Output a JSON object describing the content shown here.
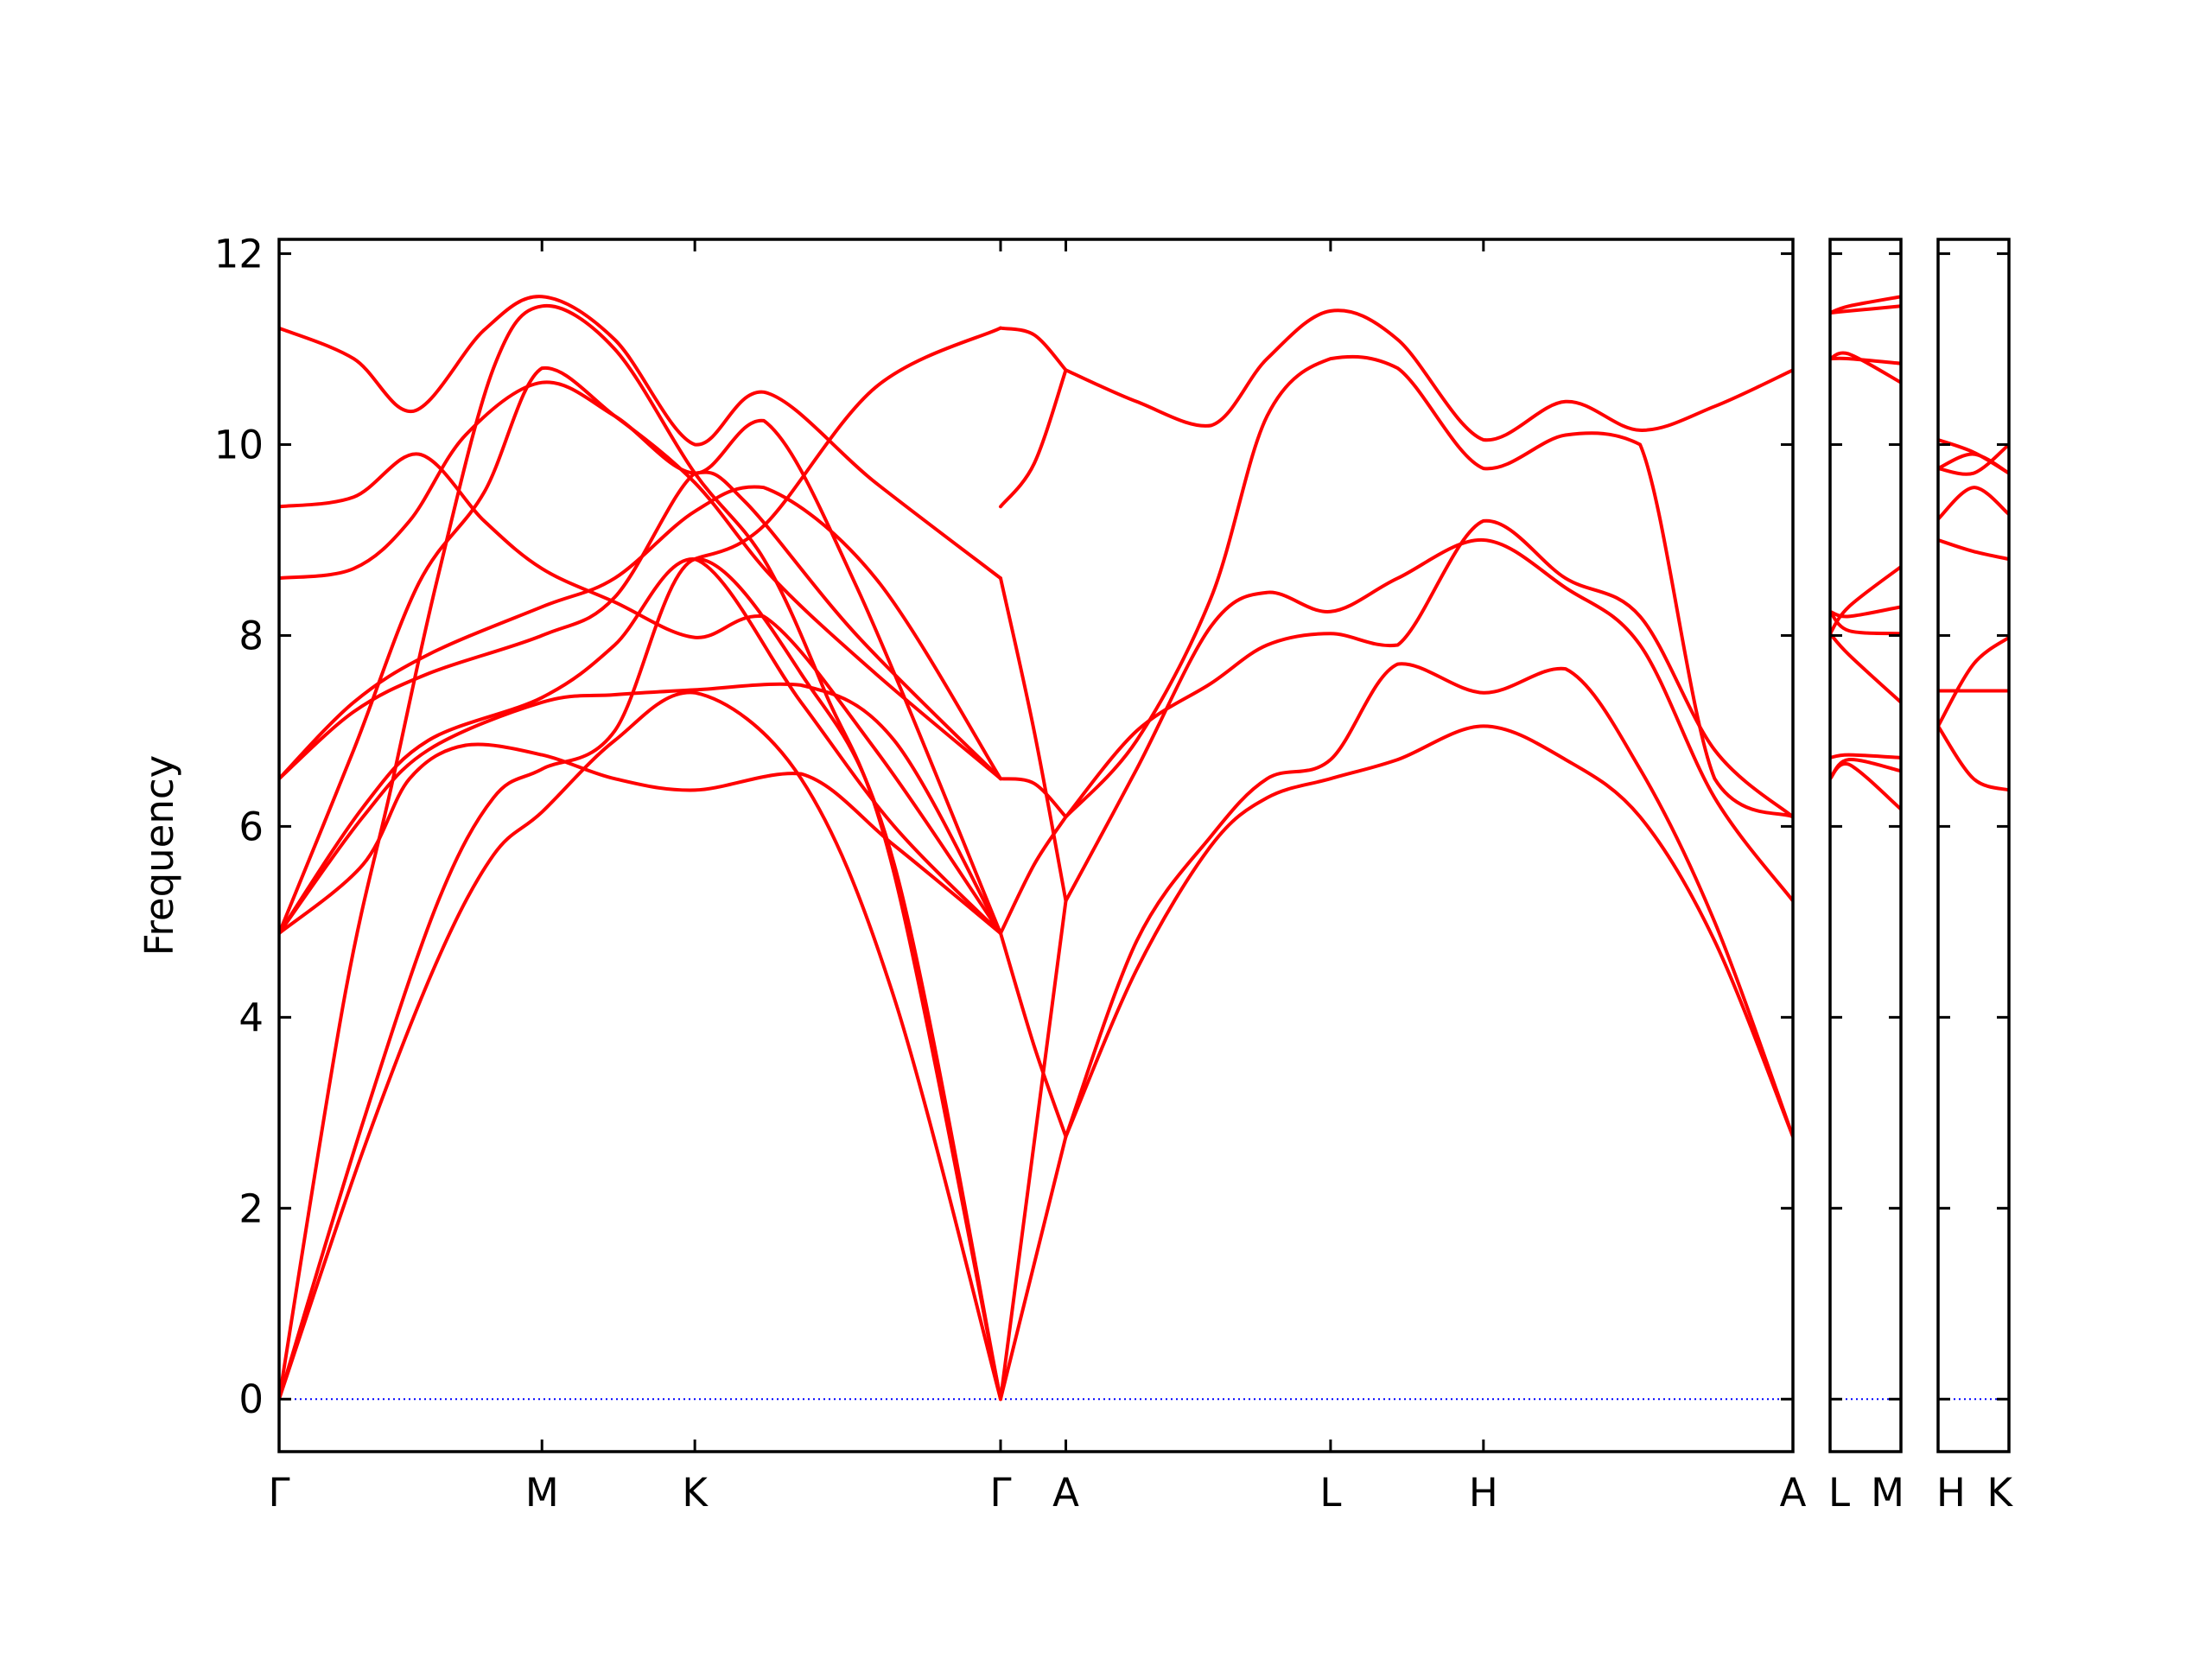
{
  "chart_data": {
    "type": "line",
    "title": "",
    "xlabel": "",
    "ylabel": "Frequency",
    "ylim": [
      -0.55,
      12.15
    ],
    "yticks": [
      0,
      2,
      4,
      6,
      8,
      10,
      12
    ],
    "ytick_labels": [
      "0",
      "2",
      "4",
      "6",
      "8",
      "10",
      "12"
    ],
    "grid": false,
    "line_color": "#ff0000",
    "zero_line_color": "#0000ff",
    "panels": [
      {
        "x_range": [
          0,
          8.12
        ],
        "high_symmetry_points": [
          {
            "x": 0.0,
            "label": "Γ"
          },
          {
            "x": 1.41,
            "label": "M"
          },
          {
            "x": 2.23,
            "label": "K"
          },
          {
            "x": 3.87,
            "label": "Γ"
          },
          {
            "x": 4.22,
            "label": "A"
          },
          {
            "x": 5.64,
            "label": "L"
          },
          {
            "x": 6.46,
            "label": "H"
          },
          {
            "x": 8.12,
            "label": "A"
          }
        ],
        "branches": [
          {
            "x": [
              0,
              0.45,
              0.85,
              1.15,
              1.41,
              1.8,
              2.23,
              2.8,
              3.3,
              3.87
            ],
            "y": [
              0,
              2.6,
              4.6,
              5.7,
              6.15,
              6.9,
              7.4,
              6.5,
              4.2,
              0
            ]
          },
          {
            "x": [
              0,
              0.45,
              0.85,
              1.15,
              1.41,
              1.8,
              2.23,
              2.8,
              3.3,
              3.87
            ],
            "y": [
              0,
              2.9,
              5.2,
              6.3,
              6.6,
              7.0,
              8.8,
              7.6,
              5.6,
              0
            ]
          },
          {
            "x": [
              0,
              0.35,
              0.6,
              0.85,
              1.15,
              1.41,
              1.8,
              2.23,
              2.6,
              2.93,
              3.3,
              3.87
            ],
            "y": [
              0,
              4.2,
              6.4,
              8.6,
              10.8,
              11.45,
              11.0,
              9.7,
              8.8,
              7.4,
              5.5,
              0
            ]
          },
          {
            "x": [
              0,
              0.45,
              0.7,
              1.0,
              1.41,
              1.8,
              2.23,
              2.8,
              3.3,
              3.87
            ],
            "y": [
              4.88,
              5.6,
              6.5,
              6.85,
              6.75,
              6.5,
              6.38,
              6.55,
              5.8,
              4.88
            ]
          },
          {
            "x": [
              0,
              0.45,
              0.8,
              1.41,
              1.8,
              2.23,
              2.8,
              3.3,
              3.87
            ],
            "y": [
              4.88,
              6.1,
              6.8,
              7.3,
              7.38,
              7.43,
              7.48,
              6.9,
              4.88
            ]
          },
          {
            "x": [
              0,
              0.45,
              0.8,
              1.41,
              1.8,
              2.23,
              2.8,
              3.3,
              3.87
            ],
            "y": [
              4.88,
              6.2,
              6.9,
              7.35,
              7.9,
              8.8,
              7.3,
              6.0,
              4.88
            ]
          },
          {
            "x": [
              0,
              0.4,
              0.8,
              1.41,
              1.8,
              2.23,
              2.5,
              3.1,
              3.87
            ],
            "y": [
              6.5,
              7.2,
              7.6,
              8.0,
              8.4,
              9.7,
              9.4,
              8.0,
              6.5
            ]
          },
          {
            "x": [
              0,
              0.4,
              0.8,
              1.41,
              1.8,
              2.23,
              2.6,
              3.2,
              3.87
            ],
            "y": [
              6.5,
              7.3,
              7.8,
              8.3,
              8.6,
              9.3,
              9.55,
              8.6,
              6.5
            ]
          },
          {
            "x": [
              0,
              0.4,
              0.75,
              1.1,
              1.41,
              1.8,
              2.23,
              2.65,
              3.2,
              3.87
            ],
            "y": [
              4.88,
              6.8,
              8.55,
              9.5,
              10.8,
              10.3,
              9.6,
              8.6,
              7.6,
              6.5
            ]
          },
          {
            "x": [
              0,
              0.4,
              0.7,
              1.0,
              1.41,
              1.8,
              2.23,
              2.6,
              3.1,
              3.87
            ],
            "y": [
              8.6,
              8.7,
              9.2,
              10.1,
              10.65,
              10.3,
              9.7,
              10.25,
              8.5,
              4.88
            ]
          },
          {
            "x": [
              0,
              0.4,
              0.75,
              1.1,
              1.41,
              1.8,
              2.23,
              2.6,
              3.2,
              3.87
            ],
            "y": [
              9.35,
              9.45,
              9.9,
              9.2,
              8.7,
              8.35,
              7.98,
              8.2,
              6.8,
              4.88
            ]
          },
          {
            "x": [
              0,
              0.4,
              0.72,
              1.1,
              1.41,
              1.8,
              2.23,
              2.6,
              3.2,
              3.87
            ],
            "y": [
              11.22,
              10.9,
              10.35,
              11.2,
              11.55,
              11.1,
              10.0,
              10.55,
              9.6,
              8.6
            ]
          },
          {
            "x": [
              2.23,
              2.6,
              3.2,
              3.87
            ],
            "y": [
              8.8,
              9.15,
              10.6,
              11.22
            ]
          },
          {
            "x": [
              3.87,
              4.22
            ],
            "y": [
              0,
              2.75
            ]
          },
          {
            "x": [
              3.87,
              4.22
            ],
            "y": [
              0,
              5.22
            ]
          },
          {
            "x": [
              3.87,
              4.05,
              4.22
            ],
            "y": [
              4.88,
              3.7,
              2.75
            ]
          },
          {
            "x": [
              3.87,
              4.05,
              4.22
            ],
            "y": [
              4.88,
              5.6,
              6.1
            ]
          },
          {
            "x": [
              3.87,
              4.05,
              4.22
            ],
            "y": [
              6.5,
              6.45,
              6.1
            ]
          },
          {
            "x": [
              3.87,
              4.05,
              4.22
            ],
            "y": [
              8.6,
              7.0,
              5.22
            ]
          },
          {
            "x": [
              3.87,
              4.05,
              4.22
            ],
            "y": [
              9.35,
              9.8,
              10.78
            ]
          },
          {
            "x": [
              3.87,
              4.05,
              4.22
            ],
            "y": [
              11.22,
              11.15,
              10.78
            ]
          },
          {
            "x": [
              4.22,
              4.6,
              5.0,
              5.3,
              5.64,
              6.0,
              6.46,
              6.9,
              7.3,
              7.7,
              8.12
            ],
            "y": [
              2.75,
              4.5,
              5.8,
              6.3,
              6.5,
              6.7,
              7.05,
              6.7,
              6.1,
              4.8,
              2.75
            ]
          },
          {
            "x": [
              4.22,
              4.6,
              5.0,
              5.3,
              5.64,
              6.0,
              6.46,
              6.9,
              7.3,
              7.7,
              8.12
            ],
            "y": [
              2.75,
              4.8,
              5.9,
              6.5,
              6.7,
              7.7,
              7.4,
              7.65,
              6.6,
              5.0,
              2.75
            ]
          },
          {
            "x": [
              4.22,
              4.6,
              5.0,
              5.3,
              5.64,
              6.0,
              6.46,
              6.9,
              7.3,
              7.7,
              8.12
            ],
            "y": [
              5.22,
              6.6,
              8.1,
              8.45,
              8.25,
              8.6,
              9.0,
              8.5,
              7.9,
              6.3,
              5.22
            ]
          },
          {
            "x": [
              4.22,
              4.6,
              5.0,
              5.3,
              5.64,
              6.0,
              6.46,
              6.9,
              7.3,
              7.7,
              8.12
            ],
            "y": [
              6.1,
              7.0,
              7.5,
              7.9,
              8.02,
              7.9,
              9.2,
              8.6,
              8.2,
              6.8,
              6.1
            ]
          },
          {
            "x": [
              4.22,
              4.6,
              5.0,
              5.3,
              5.64,
              6.0,
              6.46,
              6.9,
              7.3,
              7.7,
              8.12
            ],
            "y": [
              6.1,
              6.9,
              8.4,
              10.3,
              10.9,
              10.8,
              9.75,
              10.1,
              10.0,
              6.5,
              6.1
            ]
          },
          {
            "x": [
              4.22,
              4.6,
              5.0,
              5.3,
              5.64,
              6.0,
              6.46,
              6.9,
              7.3,
              7.7,
              8.12
            ],
            "y": [
              10.78,
              10.45,
              10.2,
              10.9,
              11.4,
              11.1,
              10.05,
              10.45,
              10.15,
              10.4,
              10.78
            ]
          }
        ]
      },
      {
        "x_range": [
          0,
          0.38
        ],
        "high_symmetry_points": [
          {
            "x": 0.0,
            "label": "L"
          },
          {
            "x": 0.38,
            "label": "M"
          }
        ],
        "branches": [
          {
            "x": [
              0,
              0.1,
              0.38
            ],
            "y": [
              6.5,
              6.65,
              6.18
            ]
          },
          {
            "x": [
              0,
              0.1,
              0.38
            ],
            "y": [
              6.5,
              6.7,
              6.58
            ]
          },
          {
            "x": [
              0,
              0.1,
              0.38
            ],
            "y": [
              6.72,
              6.75,
              6.72
            ]
          },
          {
            "x": [
              0,
              0.1,
              0.38
            ],
            "y": [
              8.02,
              7.8,
              7.3
            ]
          },
          {
            "x": [
              0,
              0.1,
              0.38
            ],
            "y": [
              8.25,
              8.05,
              8.02
            ]
          },
          {
            "x": [
              0,
              0.1,
              0.38
            ],
            "y": [
              8.25,
              8.2,
              8.3
            ]
          },
          {
            "x": [
              0,
              0.1,
              0.38
            ],
            "y": [
              8.02,
              8.3,
              8.72
            ]
          },
          {
            "x": [
              0,
              0.1,
              0.38
            ],
            "y": [
              10.9,
              10.95,
              10.65
            ]
          },
          {
            "x": [
              0,
              0.1,
              0.38
            ],
            "y": [
              10.9,
              10.9,
              10.85
            ]
          },
          {
            "x": [
              0,
              0.1,
              0.38
            ],
            "y": [
              11.38,
              11.4,
              11.45
            ]
          },
          {
            "x": [
              0,
              0.1,
              0.38
            ],
            "y": [
              11.38,
              11.45,
              11.55
            ]
          }
        ]
      },
      {
        "x_range": [
          0,
          0.38
        ],
        "high_symmetry_points": [
          {
            "x": 0.0,
            "label": "H"
          },
          {
            "x": 0.38,
            "label": "K"
          }
        ],
        "branches": [
          {
            "x": [
              0,
              0.19,
              0.38
            ],
            "y": [
              7.05,
              6.5,
              6.38
            ]
          },
          {
            "x": [
              0,
              0.19,
              0.38
            ],
            "y": [
              7.05,
              7.7,
              7.98
            ]
          },
          {
            "x": [
              0,
              0.19,
              0.38
            ],
            "y": [
              7.42,
              7.42,
              7.42
            ]
          },
          {
            "x": [
              0,
              0.19,
              0.38
            ],
            "y": [
              9.0,
              8.88,
              8.8
            ]
          },
          {
            "x": [
              0,
              0.19,
              0.38
            ],
            "y": [
              9.22,
              9.55,
              9.27
            ]
          },
          {
            "x": [
              0,
              0.19,
              0.38
            ],
            "y": [
              9.75,
              9.7,
              10.0
            ]
          },
          {
            "x": [
              0,
              0.19,
              0.38
            ],
            "y": [
              9.75,
              9.9,
              9.7
            ]
          },
          {
            "x": [
              0,
              0.19,
              0.38
            ],
            "y": [
              10.05,
              9.92,
              9.7
            ]
          }
        ]
      }
    ]
  }
}
